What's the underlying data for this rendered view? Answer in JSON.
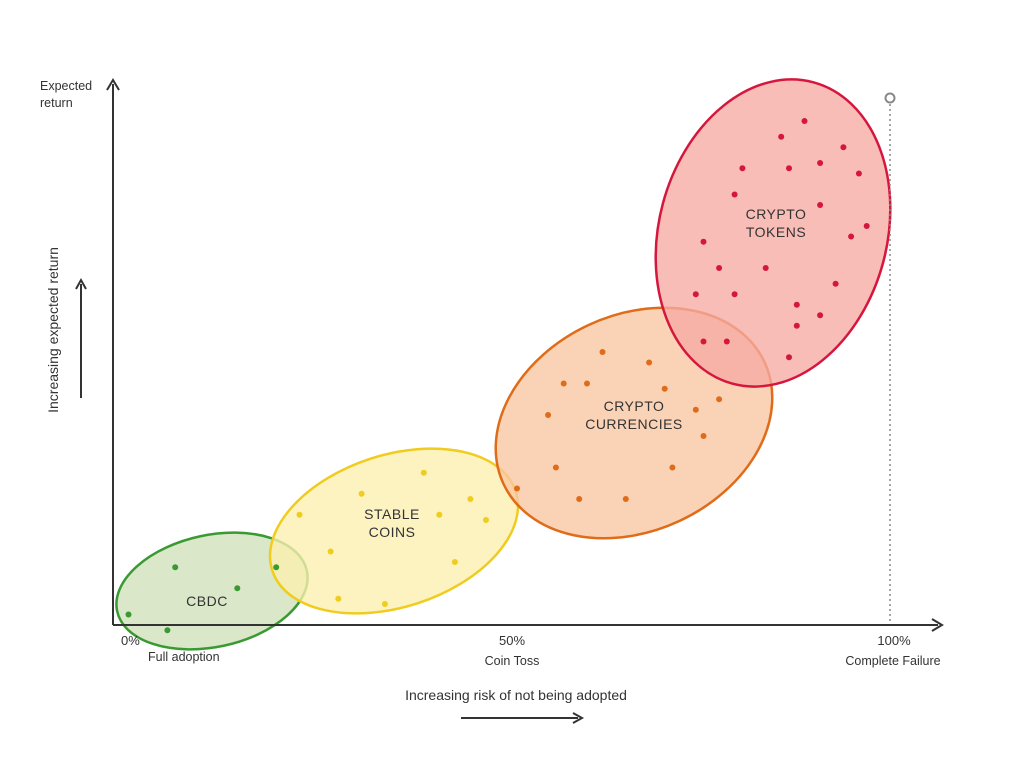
{
  "y_axis": {
    "top_label_line1": "Expected",
    "top_label_line2": "return",
    "rotated_label": "Increasing expected return"
  },
  "x_axis": {
    "title": "Increasing risk of not being adopted",
    "ticks": [
      {
        "value": "0%",
        "caption": "Full adoption"
      },
      {
        "value": "50%",
        "caption": "Coin Toss"
      },
      {
        "value": "100%",
        "caption": "Complete Failure"
      }
    ]
  },
  "clusters": [
    {
      "id": "cbdc",
      "label_lines": [
        "CBDC"
      ],
      "fill": "#cfe0b8",
      "stroke": "#3a9a32",
      "dot": "#3a9a32",
      "dots": [
        [
          2,
          2
        ],
        [
          7,
          -1
        ],
        [
          8,
          11
        ],
        [
          16,
          7
        ],
        [
          21,
          11
        ]
      ]
    },
    {
      "id": "stable-coins",
      "label_lines": [
        "STABLE",
        "COINS"
      ],
      "fill": "#fbefb0",
      "stroke": "#f0cc1e",
      "dot": "#f0cc1e",
      "dots": [
        [
          24,
          21
        ],
        [
          28,
          14
        ],
        [
          29,
          5
        ],
        [
          32,
          25
        ],
        [
          35,
          4
        ],
        [
          40,
          29
        ],
        [
          42,
          21
        ],
        [
          44,
          12
        ],
        [
          46,
          24
        ],
        [
          48,
          20
        ]
      ]
    },
    {
      "id": "crypto-currencies",
      "label_lines": [
        "CRYPTO",
        "CURRENCIES"
      ],
      "fill": "#f9c7a3",
      "stroke": "#e06b19",
      "dot": "#e06b19",
      "dots": [
        [
          52,
          26
        ],
        [
          56,
          40
        ],
        [
          57,
          30
        ],
        [
          58,
          46
        ],
        [
          60,
          24
        ],
        [
          61,
          46
        ],
        [
          63,
          52
        ],
        [
          66,
          24
        ],
        [
          69,
          50
        ],
        [
          71,
          45
        ],
        [
          72,
          30
        ],
        [
          75,
          41
        ],
        [
          76,
          36
        ],
        [
          78,
          43
        ]
      ]
    },
    {
      "id": "crypto-tokens",
      "label_lines": [
        "CRYPTO",
        "TOKENS"
      ],
      "fill": "#f6aba3",
      "stroke": "#d5173d",
      "dot": "#d5173d",
      "dots": [
        [
          75,
          63
        ],
        [
          76,
          54
        ],
        [
          76,
          73
        ],
        [
          78,
          68
        ],
        [
          79,
          54
        ],
        [
          80,
          82
        ],
        [
          80,
          63
        ],
        [
          81,
          87
        ],
        [
          84,
          68
        ],
        [
          86,
          93
        ],
        [
          87,
          87
        ],
        [
          87,
          51
        ],
        [
          88,
          61
        ],
        [
          88,
          57
        ],
        [
          89,
          96
        ],
        [
          91,
          88
        ],
        [
          91,
          80
        ],
        [
          91,
          59
        ],
        [
          93,
          65
        ],
        [
          94,
          91
        ],
        [
          95,
          74
        ],
        [
          96,
          86
        ],
        [
          97,
          76
        ]
      ]
    }
  ]
}
